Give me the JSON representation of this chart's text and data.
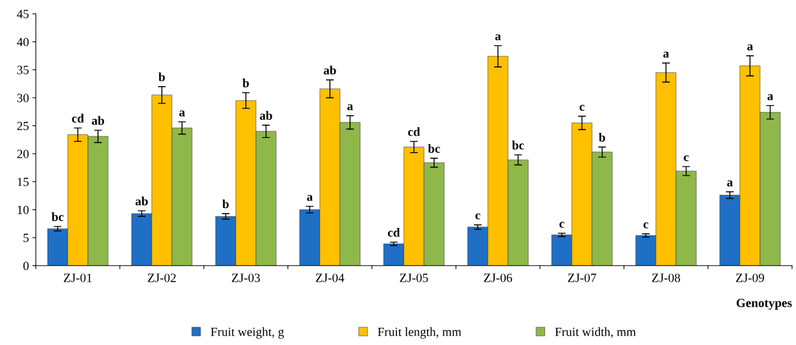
{
  "chart_data": {
    "type": "bar",
    "xlabel": "Genotypes",
    "categories": [
      "ZJ-01",
      "ZJ-02",
      "ZJ-03",
      "ZJ-04",
      "ZJ-05",
      "ZJ-06",
      "ZJ-07",
      "ZJ-08",
      "ZJ-09"
    ],
    "series": [
      {
        "name": "Fruit weight, g",
        "color": "#1f6fc5",
        "values": [
          6.6,
          9.3,
          8.8,
          10.0,
          3.9,
          6.9,
          5.5,
          5.4,
          12.6
        ],
        "errors": [
          0.4,
          0.5,
          0.5,
          0.6,
          0.3,
          0.4,
          0.3,
          0.3,
          0.6
        ]
      },
      {
        "name": "Fruit length, mm",
        "color": "#ffc000",
        "values": [
          23.4,
          30.5,
          29.5,
          31.6,
          21.2,
          37.4,
          25.5,
          34.5,
          35.7
        ],
        "errors": [
          1.2,
          1.5,
          1.4,
          1.6,
          1.0,
          1.9,
          1.2,
          1.7,
          1.8
        ]
      },
      {
        "name": "Fruit width, mm",
        "color": "#8fb84a",
        "values": [
          23.1,
          24.6,
          24.0,
          25.6,
          18.4,
          18.9,
          20.3,
          16.9,
          27.4
        ],
        "errors": [
          1.1,
          1.1,
          1.1,
          1.2,
          0.8,
          0.9,
          0.9,
          0.8,
          1.2
        ]
      }
    ],
    "ylim": [
      0,
      45
    ],
    "yticks": [
      0,
      5,
      10,
      15,
      20,
      25,
      30,
      35,
      40,
      45
    ],
    "grid": false,
    "legend": "bottom",
    "annotations": [
      "bc",
      "cd",
      "ab",
      "ab",
      "b",
      "a",
      "b",
      "b",
      "ab",
      "a",
      "ab",
      "a",
      "cd",
      "cd",
      "bc",
      "c",
      "a",
      "bc",
      "c",
      "c",
      "b",
      "c",
      "a",
      "c",
      "a",
      "a",
      "a"
    ]
  }
}
